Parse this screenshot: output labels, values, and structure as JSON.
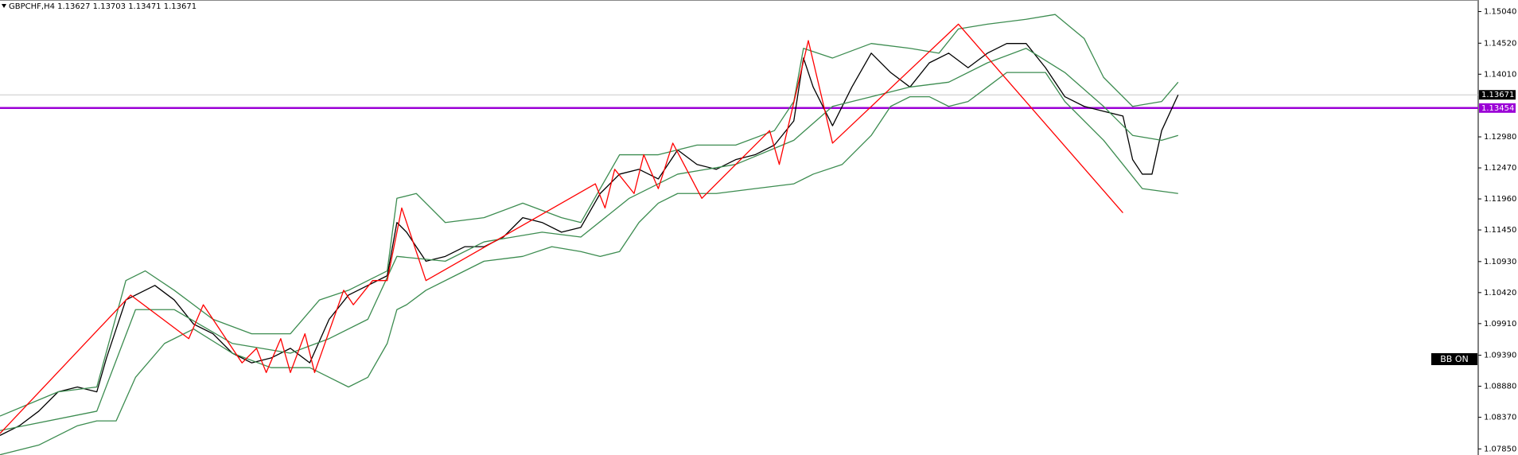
{
  "chart_data": {
    "type": "line",
    "title": "GBPCHF,H4 1.13627 1.13703 1.13471 1.13671",
    "annotation": "BB ON",
    "xlim": [
      0,
      1527
    ],
    "ylim": [
      1.0775,
      1.1523
    ],
    "yticks": [
      {
        "value": 1.1504,
        "label": "1.15040"
      },
      {
        "value": 1.1452,
        "label": "1.14520"
      },
      {
        "value": 1.1401,
        "label": "1.14010"
      },
      {
        "value": 1.1298,
        "label": "1.12980"
      },
      {
        "value": 1.1247,
        "label": "1.12470"
      },
      {
        "value": 1.1196,
        "label": "1.11960"
      },
      {
        "value": 1.1145,
        "label": "1.11450"
      },
      {
        "value": 1.1093,
        "label": "1.10930"
      },
      {
        "value": 1.1042,
        "label": "1.10420"
      },
      {
        "value": 1.0991,
        "label": "1.09910"
      },
      {
        "value": 1.0939,
        "label": "1.09390"
      },
      {
        "value": 1.0888,
        "label": "1.08880"
      },
      {
        "value": 1.0837,
        "label": "1.08370"
      },
      {
        "value": 1.0785,
        "label": "1.07850"
      }
    ],
    "hlines": [
      {
        "value": 1.13671,
        "color": "#c8c8c8",
        "label_fill": "#000000"
      },
      {
        "value": 1.13454,
        "color": "#9b00d6",
        "label_fill": "#9b00d6"
      }
    ],
    "series": [
      {
        "color": "#000000",
        "x": [
          0,
          20,
          40,
          60,
          80,
          100,
          110,
          120,
          130,
          140,
          160,
          180,
          200,
          220,
          240,
          260,
          280,
          300,
          320,
          340,
          360,
          380,
          400,
          410,
          420,
          440,
          460,
          480,
          500,
          520,
          540,
          560,
          580,
          600,
          620,
          640,
          660,
          680,
          700,
          720,
          740,
          760,
          780,
          800,
          820,
          830,
          840,
          860,
          880,
          900,
          920,
          940,
          960,
          980,
          1000,
          1020,
          1040,
          1060,
          1080,
          1100,
          1120,
          1140,
          1160,
          1170,
          1180,
          1190,
          1200,
          1217
        ],
        "values": [
          1.08072,
          1.08231,
          1.0847,
          1.08788,
          1.08868,
          1.08788,
          1.09345,
          1.09822,
          1.10299,
          1.10379,
          1.10538,
          1.10299,
          1.09902,
          1.09743,
          1.09424,
          1.09265,
          1.09345,
          1.09504,
          1.09265,
          1.09981,
          1.10379,
          1.10538,
          1.10697,
          1.11572,
          1.11413,
          1.10936,
          1.11015,
          1.11174,
          1.11174,
          1.11333,
          1.11652,
          1.11572,
          1.11413,
          1.11492,
          1.12049,
          1.12367,
          1.12447,
          1.12288,
          1.12765,
          1.12526,
          1.12447,
          1.12606,
          1.12686,
          1.12845,
          1.13242,
          1.14276,
          1.13799,
          1.13163,
          1.13799,
          1.14356,
          1.14038,
          1.13799,
          1.14197,
          1.14356,
          1.14117,
          1.14356,
          1.14515,
          1.14515,
          1.14117,
          1.1364,
          1.13481,
          1.13401,
          1.13322,
          1.12606,
          1.12367,
          1.12367,
          1.13083,
          1.13671
        ]
      },
      {
        "color": "#3c8c50",
        "x": [
          0,
          60,
          100,
          130,
          150,
          180,
          220,
          260,
          300,
          330,
          360,
          400,
          410,
          430,
          460,
          500,
          540,
          580,
          600,
          640,
          680,
          720,
          760,
          800,
          820,
          830,
          860,
          900,
          940,
          970,
          990,
          1020,
          1060,
          1090,
          1120,
          1140,
          1170,
          1200,
          1217
        ],
        "values": [
          1.0839,
          1.08788,
          1.08868,
          1.10618,
          1.10777,
          1.10458,
          1.09981,
          1.09743,
          1.09743,
          1.10299,
          1.10458,
          1.10777,
          1.1197,
          1.12049,
          1.11572,
          1.11652,
          1.1189,
          1.11652,
          1.11572,
          1.12686,
          1.12686,
          1.12845,
          1.12845,
          1.13083,
          1.13561,
          1.14435,
          1.14276,
          1.14515,
          1.14435,
          1.14356,
          1.14754,
          1.14833,
          1.14913,
          1.14992,
          1.14595,
          1.13958,
          1.13481,
          1.13561,
          1.13879
        ]
      },
      {
        "color": "#3c8c50",
        "x": [
          0,
          100,
          140,
          180,
          240,
          300,
          340,
          380,
          410,
          460,
          500,
          560,
          600,
          650,
          700,
          760,
          820,
          860,
          900,
          940,
          980,
          1020,
          1060,
          1100,
          1140,
          1170,
          1200,
          1217
        ],
        "values": [
          1.08152,
          1.0847,
          1.1014,
          1.1014,
          1.09584,
          1.09424,
          1.09663,
          1.09981,
          1.11015,
          1.10936,
          1.11254,
          1.11413,
          1.11333,
          1.1197,
          1.12367,
          1.12527,
          1.12924,
          1.13481,
          1.1364,
          1.13799,
          1.13879,
          1.14197,
          1.14435,
          1.14038,
          1.13481,
          1.13004,
          1.12924,
          1.13004
        ]
      },
      {
        "color": "#3c8c50",
        "x": [
          0,
          40,
          80,
          100,
          120,
          140,
          170,
          200,
          240,
          280,
          320,
          340,
          360,
          380,
          400,
          410,
          420,
          440,
          470,
          500,
          540,
          570,
          600,
          620,
          640,
          660,
          680,
          700,
          740,
          780,
          820,
          840,
          870,
          900,
          920,
          940,
          960,
          980,
          1000,
          1020,
          1040,
          1080,
          1100,
          1140,
          1160,
          1180,
          1217
        ],
        "values": [
          1.07754,
          1.07913,
          1.08231,
          1.08311,
          1.08311,
          1.09027,
          1.09584,
          1.09822,
          1.09424,
          1.09186,
          1.09186,
          1.09027,
          1.08868,
          1.09027,
          1.09584,
          1.1014,
          1.1022,
          1.10458,
          1.10697,
          1.10936,
          1.11015,
          1.11174,
          1.11095,
          1.11015,
          1.11095,
          1.11572,
          1.1189,
          1.12049,
          1.12049,
          1.12129,
          1.12208,
          1.12367,
          1.12527,
          1.13004,
          1.13481,
          1.1364,
          1.1364,
          1.13481,
          1.13561,
          1.13799,
          1.14038,
          1.14038,
          1.13561,
          1.12924,
          1.12527,
          1.12129,
          1.12049
        ]
      },
      {
        "color": "#ff0000",
        "x": [
          0,
          135,
          195,
          210,
          250,
          265,
          275,
          290,
          300,
          315,
          325,
          355,
          365,
          385,
          400,
          415,
          440,
          615,
          625,
          635,
          655,
          665,
          680,
          695,
          725,
          795,
          805,
          835,
          860,
          990,
          1160
        ],
        "values": [
          1.08104,
          1.10379,
          1.09663,
          1.1022,
          1.09265,
          1.09504,
          1.09106,
          1.09663,
          1.09106,
          1.09743,
          1.09106,
          1.10458,
          1.1022,
          1.10618,
          1.10618,
          1.11811,
          1.10618,
          1.12208,
          1.11811,
          1.12447,
          1.12049,
          1.12686,
          1.12129,
          1.12877,
          1.1197,
          1.13083,
          1.12527,
          1.14563,
          1.12877,
          1.14833,
          1.11731
        ]
      }
    ]
  }
}
